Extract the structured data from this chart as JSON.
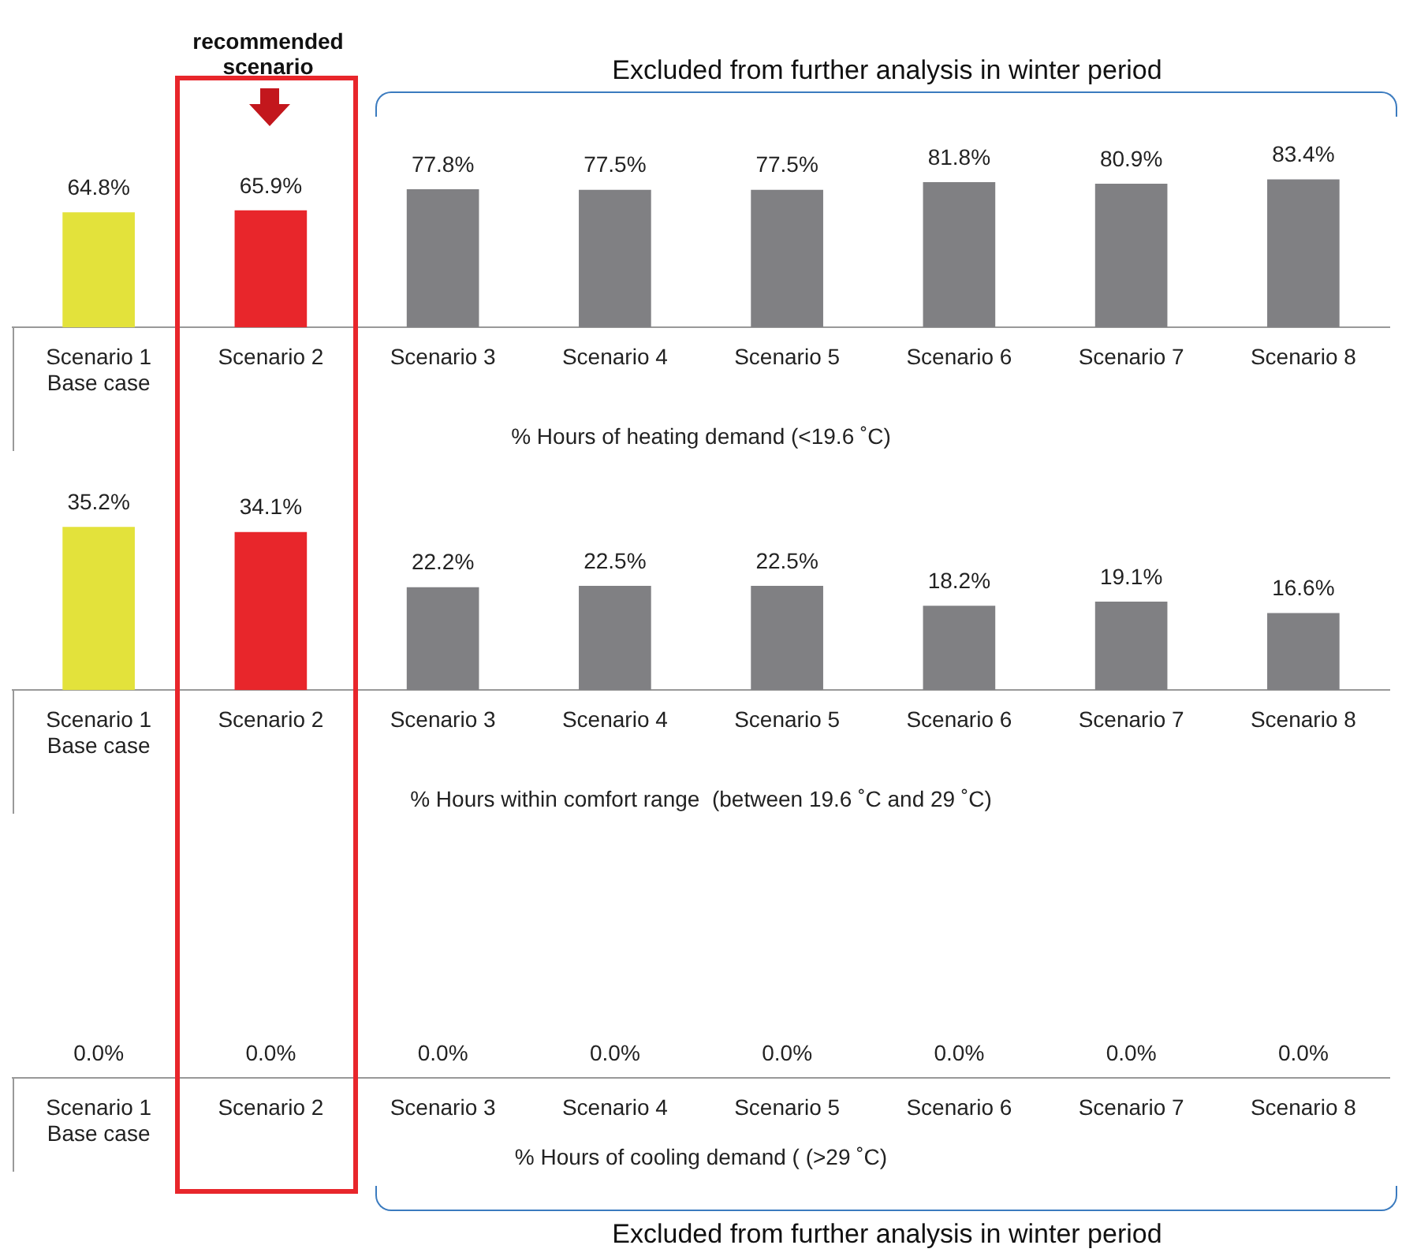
{
  "chart_data": [
    {
      "type": "bar",
      "categories": [
        "Scenario 1\nBase case",
        "Scenario 2",
        "Scenario 3",
        "Scenario 4",
        "Scenario 5",
        "Scenario 6",
        "Scenario 7",
        "Scenario 8"
      ],
      "values": [
        64.8,
        65.9,
        77.8,
        77.5,
        77.5,
        81.8,
        80.9,
        83.4
      ],
      "colors": [
        "#e3e23b",
        "#e8262b",
        "#808083",
        "#808083",
        "#808083",
        "#808083",
        "#808083",
        "#808083"
      ],
      "value_labels": [
        "64.8%",
        "65.9%",
        "77.8%",
        "77.5%",
        "77.5%",
        "81.8%",
        "80.9%",
        "83.4%"
      ],
      "xlabel": "% Hours of heating demand (<19.6 ˚C)",
      "annotations": [
        "recommended scenario",
        "Excluded from further analysis in winter period"
      ]
    },
    {
      "type": "bar",
      "categories": [
        "Scenario 1\nBase case",
        "Scenario 2",
        "Scenario 3",
        "Scenario 4",
        "Scenario 5",
        "Scenario 6",
        "Scenario 7",
        "Scenario 8"
      ],
      "values": [
        35.2,
        34.1,
        22.2,
        22.5,
        22.5,
        18.2,
        19.1,
        16.6
      ],
      "colors": [
        "#e3e23b",
        "#e8262b",
        "#808083",
        "#808083",
        "#808083",
        "#808083",
        "#808083",
        "#808083"
      ],
      "value_labels": [
        "35.2%",
        "34.1%",
        "22.2%",
        "22.5%",
        "22.5%",
        "18.2%",
        "19.1%",
        "16.6%"
      ],
      "xlabel": "% Hours within comfort range  (between 19.6 ˚C and 29 ˚C)"
    },
    {
      "type": "other",
      "categories": [
        "Scenario 1\nBase case",
        "Scenario 2",
        "Scenario 3",
        "Scenario 4",
        "Scenario 5",
        "Scenario 6",
        "Scenario 7",
        "Scenario 8"
      ],
      "values": [
        0,
        0,
        0,
        0,
        0,
        0,
        0,
        0
      ],
      "value_labels": [
        "0.0%",
        "0.0%",
        "0.0%",
        "0.0%",
        "0.0%",
        "0.0%",
        "0.0%",
        "0.0%"
      ],
      "xlabel": "% Hours of cooling demand ( (>29 ˚C)",
      "annotations": [
        "Excluded from further analysis in winter period"
      ]
    }
  ]
}
